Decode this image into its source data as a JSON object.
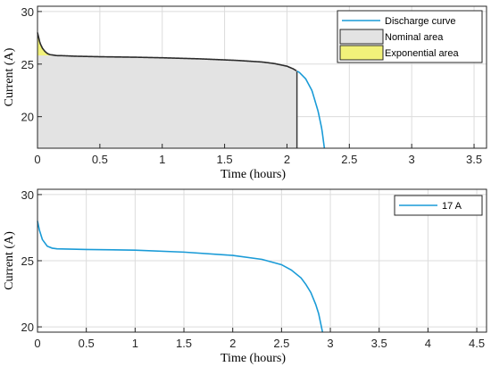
{
  "chart_data": [
    {
      "type": "line",
      "xlabel": "Time (hours)",
      "ylabel": "Current (A)",
      "xlim": [
        0,
        3.6
      ],
      "ylim": [
        17,
        30.5
      ],
      "xticks": [
        0,
        0.5,
        1,
        1.5,
        2,
        2.5,
        3,
        3.5
      ],
      "xtick_labels": [
        "0",
        "0.5",
        "1",
        "1.5",
        "2",
        "2.5",
        "3",
        "3.5"
      ],
      "yticks": [
        20,
        25,
        30
      ],
      "ytick_labels": [
        "20",
        "25",
        "30"
      ],
      "grid": true,
      "legend_position": "top-right",
      "series": [
        {
          "name": "Discharge curve",
          "color": "#1a9bd7",
          "x": [
            0,
            0.01,
            0.02,
            0.04,
            0.06,
            0.08,
            0.1,
            0.13,
            0.16,
            0.2,
            0.3,
            0.5,
            0.8,
            1.0,
            1.3,
            1.6,
            1.8,
            1.9,
            2.0,
            2.05,
            2.1,
            2.15,
            2.2,
            2.25,
            2.28,
            2.3
          ],
          "y": [
            28.0,
            27.5,
            27.0,
            26.5,
            26.2,
            26.0,
            25.9,
            25.85,
            25.8,
            25.8,
            25.75,
            25.7,
            25.65,
            25.6,
            25.5,
            25.35,
            25.2,
            25.05,
            24.8,
            24.55,
            24.2,
            23.6,
            22.5,
            20.5,
            18.8,
            17.0
          ]
        }
      ],
      "areas": [
        {
          "name": "Nominal area",
          "color": "#e3e3e3",
          "x_start": 0,
          "x_end": 2.08
        },
        {
          "name": "Exponential area",
          "color": "#f2f27a",
          "x_start": 0,
          "x_end": 0.15
        }
      ]
    },
    {
      "type": "line",
      "xlabel": "Time (hours)",
      "ylabel": "Current (A)",
      "xlim": [
        0,
        4.6
      ],
      "ylim": [
        19.6,
        30.4
      ],
      "xticks": [
        0,
        0.5,
        1,
        1.5,
        2,
        2.5,
        3,
        3.5,
        4,
        4.5
      ],
      "xtick_labels": [
        "0",
        "0.5",
        "1",
        "1.5",
        "2",
        "2.5",
        "3",
        "3.5",
        "4",
        "4.5"
      ],
      "yticks": [
        20,
        25,
        30
      ],
      "ytick_labels": [
        "20",
        "25",
        "30"
      ],
      "grid": true,
      "legend_position": "top-right",
      "series": [
        {
          "name": "17 A",
          "color": "#1a9bd7",
          "x": [
            0,
            0.02,
            0.05,
            0.1,
            0.15,
            0.2,
            0.3,
            0.5,
            1.0,
            1.5,
            2.0,
            2.3,
            2.5,
            2.6,
            2.7,
            2.75,
            2.8,
            2.85,
            2.88,
            2.9,
            2.92
          ],
          "y": [
            28.0,
            27.3,
            26.6,
            26.1,
            25.95,
            25.9,
            25.88,
            25.85,
            25.8,
            25.65,
            25.4,
            25.1,
            24.7,
            24.3,
            23.7,
            23.2,
            22.6,
            21.7,
            21.0,
            20.3,
            19.6
          ]
        }
      ]
    }
  ]
}
